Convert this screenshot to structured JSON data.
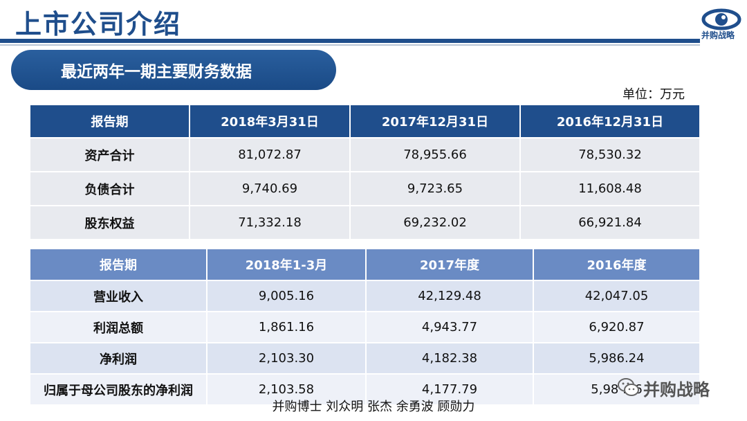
{
  "header": {
    "title": "上市公司介绍",
    "logo_text": "并购战略"
  },
  "section_title": "最近两年一期主要财务数据",
  "unit_label": "单位：万元",
  "balance_table": {
    "columns": [
      "报告期",
      "2018年3月31日",
      "2017年12月31日",
      "2016年12月31日"
    ],
    "rows": [
      {
        "label": "资产合计",
        "values": [
          "81,072.87",
          "78,955.66",
          "78,530.32"
        ]
      },
      {
        "label": "负债合计",
        "values": [
          "9,740.69",
          "9,723.65",
          "11,608.48"
        ]
      },
      {
        "label": "股东权益",
        "values": [
          "71,332.18",
          "69,232.02",
          "66,921.84"
        ]
      }
    ]
  },
  "income_table": {
    "columns": [
      "报告期",
      "2018年1-3月",
      "2017年度",
      "2016年度"
    ],
    "rows": [
      {
        "label": "营业收入",
        "values": [
          "9,005.16",
          "42,129.48",
          "42,047.05"
        ]
      },
      {
        "label": "利润总额",
        "values": [
          "1,861.16",
          "4,943.77",
          "6,920.87"
        ]
      },
      {
        "label": "净利润",
        "values": [
          "2,103.30",
          "4,182.38",
          "5,986.24"
        ]
      },
      {
        "label": "归属于母公司股东的净利润",
        "values": [
          "2,103.58",
          "4,177.79",
          "5,98 .16"
        ]
      }
    ]
  },
  "footer": "并购博士 刘众明 张杰 余勇波 顾勋力",
  "watermark": {
    "icon": "wechat-icon",
    "text": "并购战略"
  },
  "colors": {
    "brand_blue": "#1f4e8c",
    "header_light_blue": "#6a8bc4"
  }
}
